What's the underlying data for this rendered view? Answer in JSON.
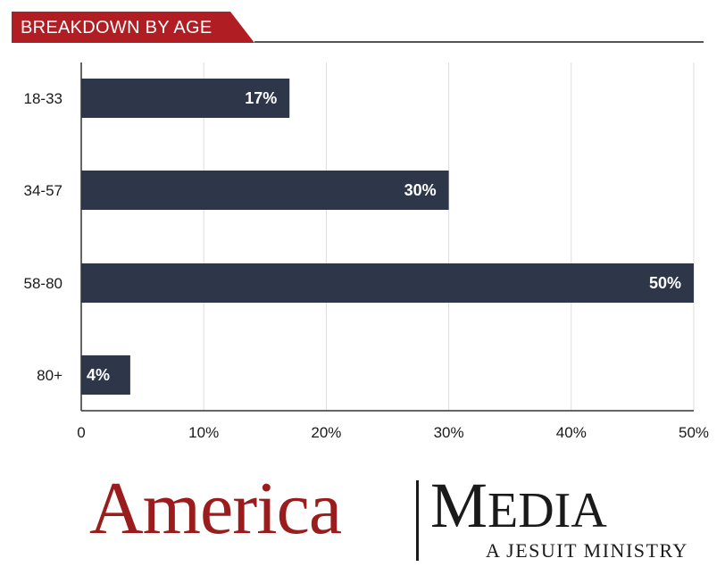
{
  "header": {
    "title": "BREAKDOWN BY AGE"
  },
  "chart_data": {
    "type": "bar",
    "orientation": "horizontal",
    "title": "BREAKDOWN BY AGE",
    "categories": [
      "18-33",
      "34-57",
      "58-80",
      "80+"
    ],
    "values": [
      17,
      30,
      50,
      4
    ],
    "data_labels": [
      "17%",
      "30%",
      "50%",
      "4%"
    ],
    "xlim": [
      0,
      50
    ],
    "x_ticks": [
      0,
      10,
      20,
      30,
      40,
      50
    ],
    "x_tick_labels": [
      "0",
      "10%",
      "20%",
      "30%",
      "40%",
      "50%"
    ],
    "xlabel": "",
    "ylabel": "",
    "grid": "vertical",
    "legend": "none",
    "colors": {
      "bar": "#2e3649",
      "banner": "#b01e23",
      "grid": "#dddddd",
      "label": "#ffffff"
    }
  },
  "logo": {
    "america": "America",
    "media": "Media",
    "tagline": "A JESUIT MINISTRY",
    "colors": {
      "america": "#9b1c1c",
      "media": "#1a1a1a"
    }
  }
}
